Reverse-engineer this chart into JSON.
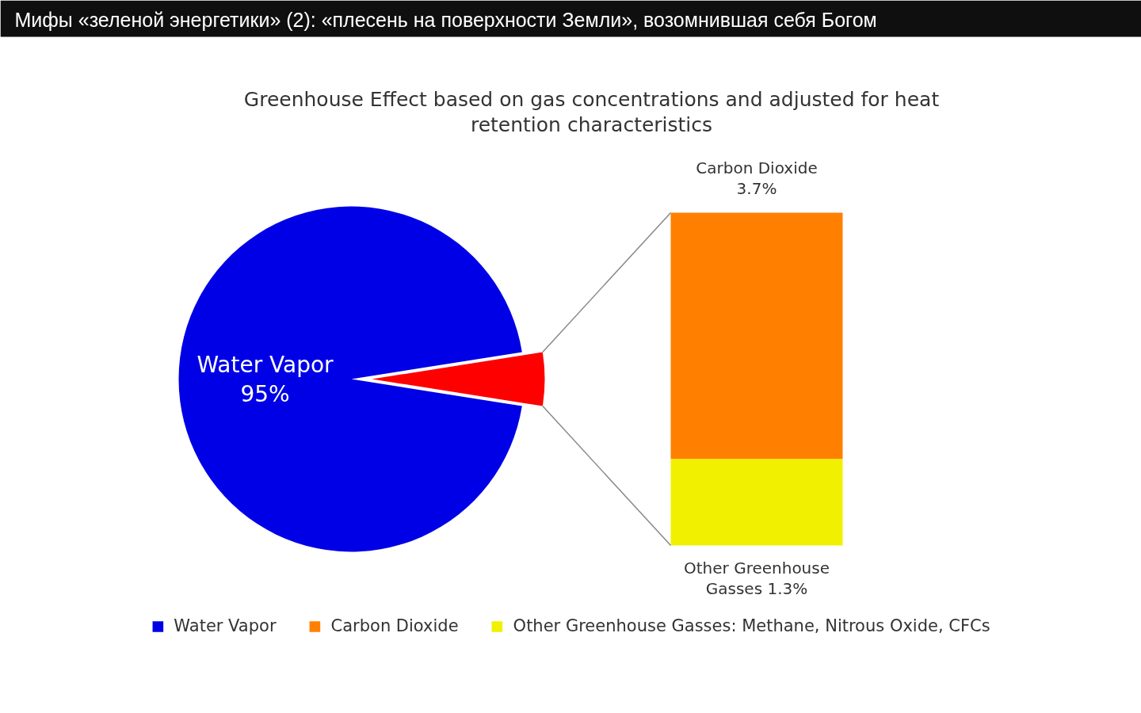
{
  "chart_data": [
    {
      "type": "pie",
      "title": "Greenhouse Effect based on gas concentrations and adjusted for heat retention characteristics",
      "annotations": [
        "Мифы «зеленой энергетики» (2): «плесень на поверхности Земли», возомнившая себя Богом"
      ],
      "categories": [
        "Water Vapor",
        null
      ],
      "values": [
        95,
        5
      ],
      "colors": [
        "#0000e6",
        "#ff0000"
      ],
      "value_labels": [
        "95%",
        null
      ],
      "legend": "bottom"
    },
    {
      "type": "bar",
      "stacked": true,
      "categories": [
        null
      ],
      "series": [
        {
          "name": "Other Greenhouse Gasses: Methane, Nitrous Oxide, CFCs",
          "color": "#f0f000",
          "values": [
            1.3
          ],
          "value_labels": [
            "Other Greenhouse Gasses 1.3%"
          ]
        },
        {
          "name": "Carbon Dioxide",
          "color": "#ff8000",
          "values": [
            3.7
          ],
          "value_labels": [
            "Carbon Dioxide 3.7%"
          ]
        }
      ],
      "legend": "bottom"
    }
  ]
}
